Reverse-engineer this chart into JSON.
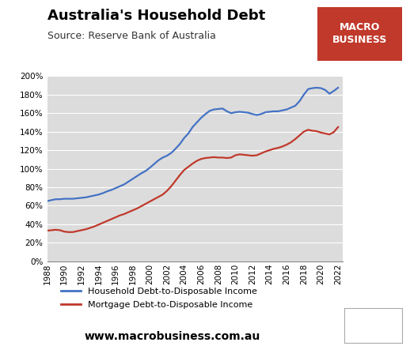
{
  "title": "Australia's Household Debt",
  "subtitle": "Source: Reserve Bank of Australia",
  "website": "www.macrobusiness.com.au",
  "background_color": "#dcdcdc",
  "fig_background": "#ffffff",
  "title_fontsize": 13,
  "subtitle_fontsize": 9,
  "website_fontsize": 10,
  "line_color_household": "#4472c4",
  "line_color_mortgage": "#c0392b",
  "legend_label_household": "Household Debt-to-Disposable Income",
  "legend_label_mortgage": "Mortgage Debt-to-Disposable Income",
  "macro_box_color": "#c0392b",
  "macro_text": "MACRO\nBUSINESS",
  "xlim": [
    1988,
    2022.5
  ],
  "ylim": [
    0,
    2.0
  ],
  "yticks": [
    0.0,
    0.2,
    0.4,
    0.6,
    0.8,
    1.0,
    1.2,
    1.4,
    1.6,
    1.8,
    2.0
  ],
  "xticks": [
    1988,
    1990,
    1992,
    1994,
    1996,
    1998,
    2000,
    2002,
    2004,
    2006,
    2008,
    2010,
    2012,
    2014,
    2016,
    2018,
    2020,
    2022
  ],
  "household_x": [
    1988,
    1988.5,
    1989,
    1989.5,
    1990,
    1990.5,
    1991,
    1991.5,
    1992,
    1992.5,
    1993,
    1993.5,
    1994,
    1994.5,
    1995,
    1995.5,
    1996,
    1996.5,
    1997,
    1997.5,
    1998,
    1998.5,
    1999,
    1999.5,
    2000,
    2000.5,
    2001,
    2001.5,
    2002,
    2002.5,
    2003,
    2003.5,
    2004,
    2004.5,
    2005,
    2005.5,
    2006,
    2006.5,
    2007,
    2007.5,
    2008,
    2008.5,
    2009,
    2009.5,
    2010,
    2010.5,
    2011,
    2011.5,
    2012,
    2012.5,
    2013,
    2013.5,
    2014,
    2014.5,
    2015,
    2015.5,
    2016,
    2016.5,
    2017,
    2017.5,
    2018,
    2018.5,
    2019,
    2019.5,
    2020,
    2020.5,
    2021,
    2021.5,
    2022
  ],
  "household_y": [
    0.65,
    0.66,
    0.67,
    0.67,
    0.675,
    0.675,
    0.675,
    0.68,
    0.685,
    0.69,
    0.7,
    0.71,
    0.72,
    0.735,
    0.755,
    0.77,
    0.79,
    0.81,
    0.83,
    0.86,
    0.89,
    0.92,
    0.95,
    0.975,
    1.01,
    1.05,
    1.09,
    1.12,
    1.14,
    1.17,
    1.215,
    1.265,
    1.33,
    1.38,
    1.45,
    1.5,
    1.55,
    1.59,
    1.625,
    1.64,
    1.645,
    1.65,
    1.62,
    1.6,
    1.61,
    1.615,
    1.61,
    1.605,
    1.59,
    1.58,
    1.59,
    1.61,
    1.615,
    1.62,
    1.62,
    1.63,
    1.64,
    1.66,
    1.68,
    1.73,
    1.8,
    1.86,
    1.87,
    1.875,
    1.87,
    1.85,
    1.81,
    1.84,
    1.875
  ],
  "mortgage_x": [
    1988,
    1988.5,
    1989,
    1989.5,
    1990,
    1990.5,
    1991,
    1991.5,
    1992,
    1992.5,
    1993,
    1993.5,
    1994,
    1994.5,
    1995,
    1995.5,
    1996,
    1996.5,
    1997,
    1997.5,
    1998,
    1998.5,
    1999,
    1999.5,
    2000,
    2000.5,
    2001,
    2001.5,
    2002,
    2002.5,
    2003,
    2003.5,
    2004,
    2004.5,
    2005,
    2005.5,
    2006,
    2006.5,
    2007,
    2007.5,
    2008,
    2008.5,
    2009,
    2009.5,
    2010,
    2010.5,
    2011,
    2011.5,
    2012,
    2012.5,
    2013,
    2013.5,
    2014,
    2014.5,
    2015,
    2015.5,
    2016,
    2016.5,
    2017,
    2017.5,
    2018,
    2018.5,
    2019,
    2019.5,
    2020,
    2020.5,
    2021,
    2021.5,
    2022
  ],
  "mortgage_y": [
    0.33,
    0.335,
    0.34,
    0.335,
    0.32,
    0.315,
    0.315,
    0.325,
    0.335,
    0.345,
    0.36,
    0.375,
    0.395,
    0.415,
    0.435,
    0.455,
    0.475,
    0.495,
    0.51,
    0.53,
    0.55,
    0.57,
    0.595,
    0.62,
    0.645,
    0.67,
    0.695,
    0.72,
    0.76,
    0.81,
    0.87,
    0.93,
    0.985,
    1.02,
    1.055,
    1.085,
    1.105,
    1.115,
    1.12,
    1.125,
    1.12,
    1.12,
    1.115,
    1.12,
    1.145,
    1.155,
    1.15,
    1.145,
    1.14,
    1.145,
    1.165,
    1.185,
    1.2,
    1.215,
    1.225,
    1.24,
    1.26,
    1.285,
    1.32,
    1.36,
    1.4,
    1.42,
    1.41,
    1.405,
    1.39,
    1.38,
    1.37,
    1.395,
    1.45
  ]
}
